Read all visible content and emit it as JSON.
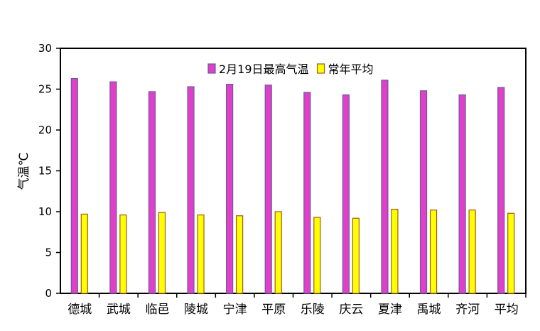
{
  "chart_data": {
    "type": "bar",
    "title": "",
    "xlabel": "",
    "ylabel": "气温℃",
    "ylim": [
      0,
      30
    ],
    "yticks": [
      0,
      5,
      10,
      15,
      20,
      25,
      30
    ],
    "grid": false,
    "legend_position": "top-center",
    "categories": [
      "德城",
      "武城",
      "临邑",
      "陵城",
      "宁津",
      "平原",
      "乐陵",
      "庆云",
      "夏津",
      "禹城",
      "齐河",
      "平均"
    ],
    "series": [
      {
        "name": "2月19日最高气温",
        "color": "#e040c8",
        "border": "#6a5aa0",
        "values": [
          26.3,
          25.9,
          24.7,
          25.3,
          25.6,
          25.5,
          24.6,
          24.3,
          26.1,
          24.8,
          24.3,
          25.2
        ]
      },
      {
        "name": "常年平均",
        "color": "#ffff00",
        "border": "#a05a1a",
        "values": [
          9.7,
          9.6,
          9.9,
          9.6,
          9.5,
          10.0,
          9.3,
          9.2,
          10.3,
          10.2,
          10.2,
          9.8
        ]
      }
    ]
  }
}
